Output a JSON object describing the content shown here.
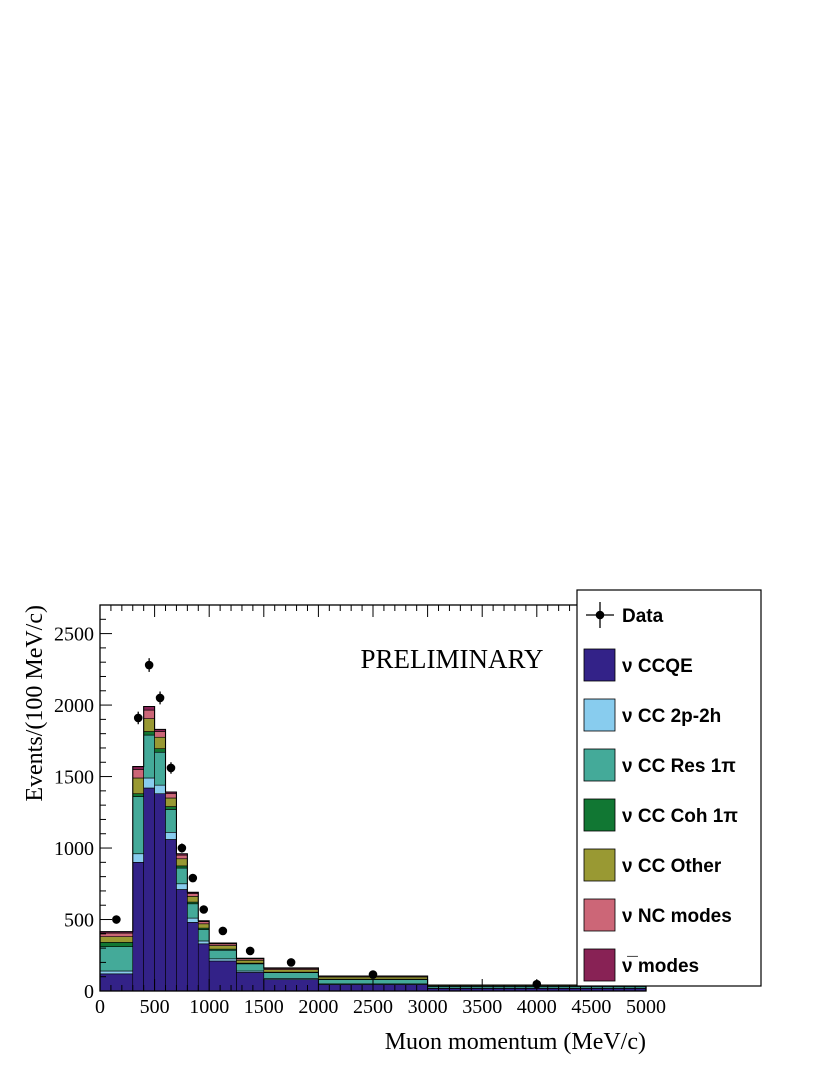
{
  "chart_data": {
    "type": "bar",
    "stacked": true,
    "title": "",
    "annotation": "PRELIMINARY",
    "xlabel": "Muon momentum (MeV/c)",
    "ylabel": "Events/(100 MeV/c)",
    "xlim": [
      0,
      5000
    ],
    "ylim": [
      0,
      2700
    ],
    "x_ticks": [
      0,
      500,
      1000,
      1500,
      2000,
      2500,
      3000,
      3500,
      4000,
      4500,
      5000
    ],
    "y_ticks": [
      0,
      500,
      1000,
      1500,
      2000,
      2500
    ],
    "grid": false,
    "legend_position": "right",
    "bin_edges": [
      0,
      300,
      400,
      500,
      600,
      700,
      800,
      900,
      1000,
      1250,
      1500,
      2000,
      3000,
      5000
    ],
    "series": [
      {
        "name": "ν CCQE",
        "color": "#332288",
        "values": [
          120,
          900,
          1420,
          1380,
          1060,
          710,
          480,
          330,
          210,
          130,
          80,
          45,
          18
        ]
      },
      {
        "name": "ν CC 2p-2h",
        "color": "#88ccee",
        "values": [
          20,
          60,
          70,
          60,
          50,
          40,
          30,
          20,
          15,
          10,
          8,
          5,
          2
        ]
      },
      {
        "name": "ν CC Res 1π",
        "color": "#44aa99",
        "values": [
          170,
          400,
          300,
          230,
          160,
          110,
          100,
          80,
          60,
          50,
          40,
          30,
          12
        ]
      },
      {
        "name": "ν CC Coh 1π",
        "color": "#117733",
        "values": [
          30,
          20,
          25,
          25,
          20,
          15,
          12,
          10,
          8,
          5,
          4,
          3,
          1
        ]
      },
      {
        "name": "ν CC Other",
        "color": "#999933",
        "values": [
          40,
          110,
          90,
          80,
          60,
          50,
          40,
          30,
          25,
          20,
          18,
          15,
          6
        ]
      },
      {
        "name": "ν NC modes",
        "color": "#cc6677",
        "values": [
          25,
          60,
          60,
          40,
          30,
          25,
          20,
          15,
          12,
          10,
          8,
          5,
          2
        ]
      },
      {
        "name": "ν̅ modes",
        "color": "#882255",
        "values": [
          10,
          20,
          25,
          15,
          12,
          10,
          8,
          6,
          5,
          4,
          3,
          2,
          1
        ]
      }
    ],
    "data_points": {
      "name": "Data",
      "x": [
        150,
        350,
        450,
        550,
        650,
        750,
        850,
        950,
        1125,
        1375,
        1750,
        2500,
        4000
      ],
      "y": [
        500,
        1910,
        2280,
        2050,
        1560,
        1000,
        790,
        570,
        420,
        280,
        200,
        115,
        48
      ],
      "yerr": [
        22,
        44,
        48,
        45,
        40,
        32,
        28,
        24,
        20,
        17,
        14,
        11,
        7
      ]
    }
  }
}
